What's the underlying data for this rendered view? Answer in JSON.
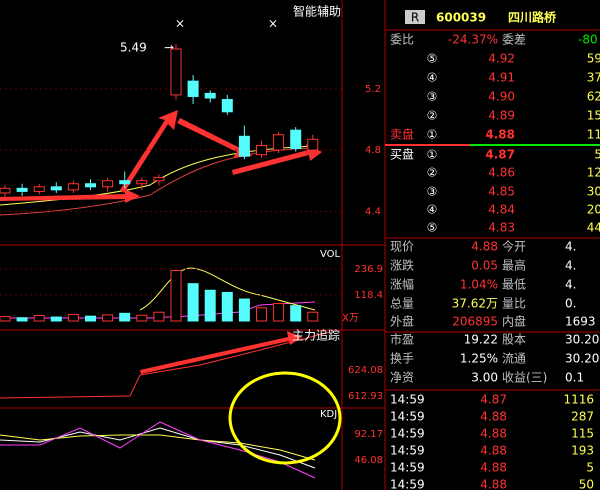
{
  "chart_data": {
    "type": "candlestick",
    "title": "智能辅助",
    "open": [
      4.52,
      4.55,
      4.53,
      4.56,
      4.54,
      4.58,
      4.56,
      4.6,
      4.58,
      4.6,
      5.16,
      5.25,
      5.17,
      5.13,
      4.89,
      4.77,
      4.8,
      4.93,
      4.8
    ],
    "high": [
      4.57,
      4.58,
      4.58,
      4.59,
      4.6,
      4.61,
      4.62,
      4.66,
      4.62,
      4.64,
      5.49,
      5.29,
      5.19,
      5.16,
      4.96,
      4.86,
      4.92,
      4.95,
      4.9
    ],
    "low": [
      4.49,
      4.5,
      4.51,
      4.52,
      4.52,
      4.54,
      4.53,
      4.55,
      4.54,
      4.57,
      5.13,
      5.1,
      5.11,
      5.03,
      4.74,
      4.75,
      4.78,
      4.79,
      4.79
    ],
    "close": [
      4.55,
      4.53,
      4.56,
      4.54,
      4.58,
      4.56,
      4.6,
      4.58,
      4.6,
      4.62,
      5.46,
      5.15,
      5.14,
      5.05,
      4.76,
      4.83,
      4.9,
      4.81,
      4.87
    ],
    "volume": [
      20,
      15,
      25,
      18,
      30,
      22,
      28,
      35,
      26,
      40,
      230,
      170,
      140,
      130,
      100,
      60,
      80,
      70,
      40
    ],
    "ylim": [
      4.18,
      5.78
    ],
    "yticks": [
      4.4,
      4.8,
      5.2
    ],
    "volume_title": "VOL",
    "volume_unit": "X万",
    "volume_lim": [
      0,
      346
    ],
    "volume_ticks": [
      118.4,
      236.9
    ],
    "main_force_title": "主力追踪",
    "main_force_ticks": [
      624.08,
      612.93
    ],
    "kdj_title": "KDJ",
    "kdj_ticks": [
      92.17,
      46.08
    ]
  },
  "stock": {
    "badge": "R",
    "code": "600039",
    "name": "四川路桥"
  },
  "order_book": {
    "ratio_label": "委比",
    "ratio": "-24.37%",
    "diff_label": "委差",
    "diff": "-80",
    "sell_label": "卖盘",
    "buy_label": "买盘",
    "asks": [
      {
        "level": "⑤",
        "price": "4.92",
        "vol": "59"
      },
      {
        "level": "④",
        "price": "4.91",
        "vol": "37"
      },
      {
        "level": "③",
        "price": "4.90",
        "vol": "62"
      },
      {
        "level": "②",
        "price": "4.89",
        "vol": "15"
      },
      {
        "level": "①",
        "price": "4.88",
        "vol": "11"
      }
    ],
    "bids": [
      {
        "level": "①",
        "price": "4.87",
        "vol": "5"
      },
      {
        "level": "②",
        "price": "4.86",
        "vol": "12"
      },
      {
        "level": "③",
        "price": "4.85",
        "vol": "30"
      },
      {
        "level": "④",
        "price": "4.84",
        "vol": "20"
      },
      {
        "level": "⑤",
        "price": "4.83",
        "vol": "44"
      }
    ]
  },
  "stats": [
    [
      "现价",
      "4.88",
      "今开",
      "4."
    ],
    [
      "涨跌",
      "0.05",
      "最高",
      "4."
    ],
    [
      "涨幅",
      "1.04%",
      "最低",
      "4."
    ],
    [
      "总量",
      "37.62万",
      "量比",
      "0."
    ],
    [
      "外盘",
      "206895",
      "内盘",
      "1693"
    ]
  ],
  "fundamentals": [
    [
      "市盈",
      "19.22",
      "股本",
      "30.20"
    ],
    [
      "换手",
      "1.25%",
      "流通",
      "30.20"
    ],
    [
      "净资",
      "3.00",
      "收益(三)",
      "0.1"
    ]
  ],
  "trades": [
    [
      "14:59",
      "4.87",
      "1116"
    ],
    [
      "14:59",
      "4.88",
      "287"
    ],
    [
      "14:59",
      "4.88",
      "115"
    ],
    [
      "14:59",
      "4.88",
      "193"
    ],
    [
      "14:59",
      "4.88",
      "5"
    ],
    [
      "14:59",
      "4.88",
      "50"
    ]
  ]
}
